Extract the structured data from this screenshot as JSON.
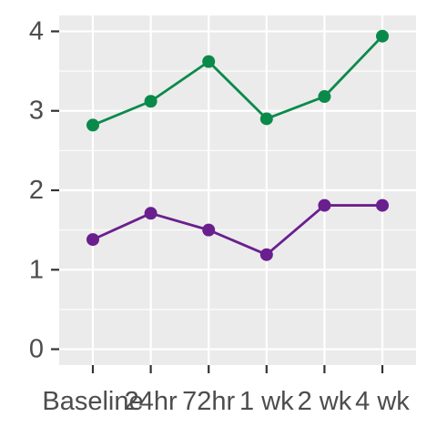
{
  "chart_data": {
    "type": "line",
    "title": "",
    "xlabel": "",
    "ylabel": "",
    "categories": [
      "Baseline",
      "24hr",
      "72hr",
      "1 wk",
      "2 wk",
      "4 wk"
    ],
    "ylim": [
      -0.2,
      4.2
    ],
    "y_ticks": [
      "0",
      "1",
      "2",
      "3",
      "4"
    ],
    "grid": true,
    "legend": "none",
    "series": [
      {
        "color": "#0a8a4a",
        "values": [
          2.82,
          3.12,
          3.62,
          2.9,
          3.18,
          3.94
        ]
      },
      {
        "color": "#6a1f8e",
        "values": [
          1.38,
          1.71,
          1.5,
          1.19,
          1.81,
          1.81
        ]
      }
    ],
    "colors": {
      "panel": "#ebebeb",
      "grid": "#ffffff",
      "tick": "#333333"
    }
  }
}
